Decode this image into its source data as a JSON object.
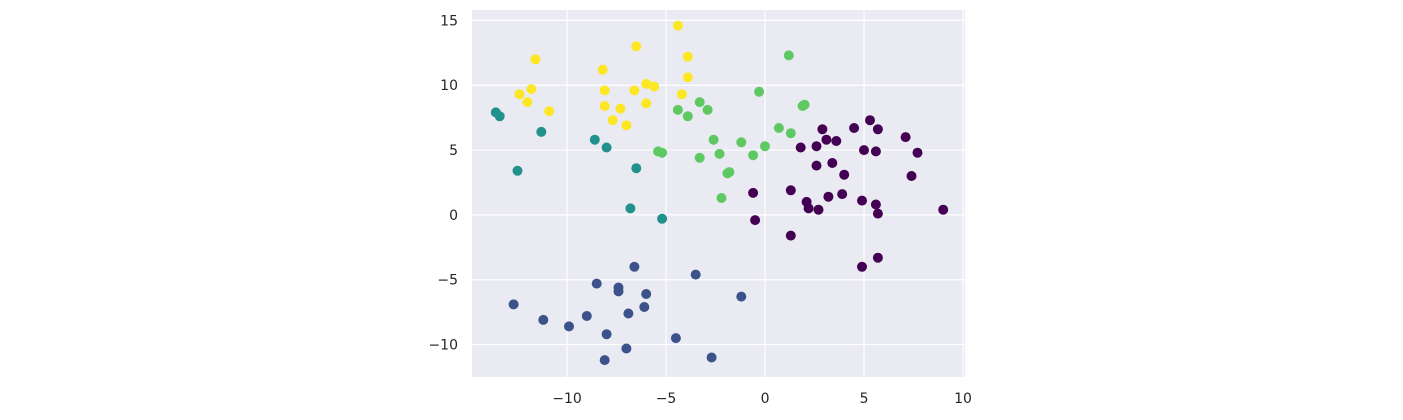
{
  "chart_data": {
    "type": "scatter",
    "title": "",
    "xlabel": "",
    "ylabel": "",
    "xlim": [
      -14.8,
      10.1
    ],
    "ylim": [
      -12.5,
      15.8
    ],
    "xticks": [
      -10,
      -5,
      0,
      5,
      10
    ],
    "yticks": [
      -10,
      -5,
      0,
      5,
      10,
      15
    ],
    "xtick_labels": [
      "−10",
      "−5",
      "0",
      "5",
      "10"
    ],
    "ytick_labels": [
      "−10",
      "−5",
      "0",
      "5",
      "10",
      "15"
    ],
    "grid": true,
    "background": "#eaeaf2",
    "series": [
      {
        "color": "#fde725",
        "points": [
          [
            -11.6,
            12.0
          ],
          [
            -12.4,
            9.3
          ],
          [
            -12.0,
            8.7
          ],
          [
            -11.8,
            9.7
          ],
          [
            -10.9,
            8.0
          ],
          [
            -8.2,
            11.2
          ],
          [
            -8.1,
            9.6
          ],
          [
            -8.1,
            8.4
          ],
          [
            -7.7,
            7.3
          ],
          [
            -7.3,
            8.2
          ],
          [
            -7.0,
            6.9
          ],
          [
            -6.5,
            13.0
          ],
          [
            -6.6,
            9.6
          ],
          [
            -6.0,
            10.1
          ],
          [
            -5.6,
            9.9
          ],
          [
            -6.0,
            8.6
          ],
          [
            -4.4,
            14.6
          ],
          [
            -4.2,
            9.3
          ],
          [
            -3.9,
            12.2
          ],
          [
            -3.9,
            10.6
          ]
        ]
      },
      {
        "color": "#21918c",
        "points": [
          [
            -13.6,
            7.9
          ],
          [
            -13.4,
            7.6
          ],
          [
            -11.3,
            6.4
          ],
          [
            -12.5,
            3.4
          ],
          [
            -8.6,
            5.8
          ],
          [
            -8.0,
            5.2
          ],
          [
            -6.5,
            3.6
          ],
          [
            -6.8,
            0.5
          ],
          [
            -5.2,
            -0.3
          ]
        ]
      },
      {
        "color": "#5ec962",
        "points": [
          [
            1.2,
            12.3
          ],
          [
            -0.3,
            9.5
          ],
          [
            1.9,
            8.4
          ],
          [
            2.0,
            8.5
          ],
          [
            -3.3,
            8.7
          ],
          [
            -2.9,
            8.1
          ],
          [
            -4.4,
            8.1
          ],
          [
            -3.9,
            7.6
          ],
          [
            0.7,
            6.7
          ],
          [
            1.3,
            6.3
          ],
          [
            -2.6,
            5.8
          ],
          [
            -1.2,
            5.6
          ],
          [
            0.0,
            5.3
          ],
          [
            -5.4,
            4.9
          ],
          [
            -5.2,
            4.8
          ],
          [
            -3.3,
            4.4
          ],
          [
            -2.3,
            4.7
          ],
          [
            -0.6,
            4.6
          ],
          [
            -1.9,
            3.2
          ],
          [
            -1.8,
            3.3
          ],
          [
            -2.2,
            1.3
          ]
        ]
      },
      {
        "color": "#440154",
        "points": [
          [
            2.9,
            6.6
          ],
          [
            4.5,
            6.7
          ],
          [
            5.3,
            7.3
          ],
          [
            5.7,
            6.6
          ],
          [
            7.1,
            6.0
          ],
          [
            3.1,
            5.8
          ],
          [
            3.6,
            5.7
          ],
          [
            2.6,
            5.3
          ],
          [
            1.8,
            5.2
          ],
          [
            5.0,
            5.0
          ],
          [
            5.6,
            4.9
          ],
          [
            7.7,
            4.8
          ],
          [
            2.6,
            3.8
          ],
          [
            3.4,
            4.0
          ],
          [
            4.0,
            3.1
          ],
          [
            7.4,
            3.0
          ],
          [
            1.3,
            1.9
          ],
          [
            -0.6,
            1.7
          ],
          [
            3.2,
            1.4
          ],
          [
            3.9,
            1.6
          ],
          [
            2.1,
            1.0
          ],
          [
            2.2,
            0.5
          ],
          [
            2.7,
            0.4
          ],
          [
            4.9,
            1.1
          ],
          [
            5.6,
            0.8
          ],
          [
            5.7,
            0.1
          ],
          [
            9.0,
            0.4
          ],
          [
            -0.5,
            -0.4
          ],
          [
            1.3,
            -1.6
          ],
          [
            4.9,
            -4.0
          ],
          [
            5.7,
            -3.3
          ]
        ]
      },
      {
        "color": "#3b528b",
        "points": [
          [
            -6.6,
            -4.0
          ],
          [
            -3.5,
            -4.6
          ],
          [
            -8.5,
            -5.3
          ],
          [
            -7.4,
            -5.6
          ],
          [
            -7.4,
            -5.9
          ],
          [
            -6.0,
            -6.1
          ],
          [
            -1.2,
            -6.3
          ],
          [
            -12.7,
            -6.9
          ],
          [
            -6.1,
            -7.1
          ],
          [
            -6.9,
            -7.6
          ],
          [
            -9.0,
            -7.8
          ],
          [
            -11.2,
            -8.1
          ],
          [
            -9.9,
            -8.6
          ],
          [
            -8.0,
            -9.2
          ],
          [
            -4.5,
            -9.5
          ],
          [
            -7.0,
            -10.3
          ],
          [
            -2.7,
            -11.0
          ],
          [
            -8.1,
            -11.2
          ]
        ]
      }
    ]
  }
}
